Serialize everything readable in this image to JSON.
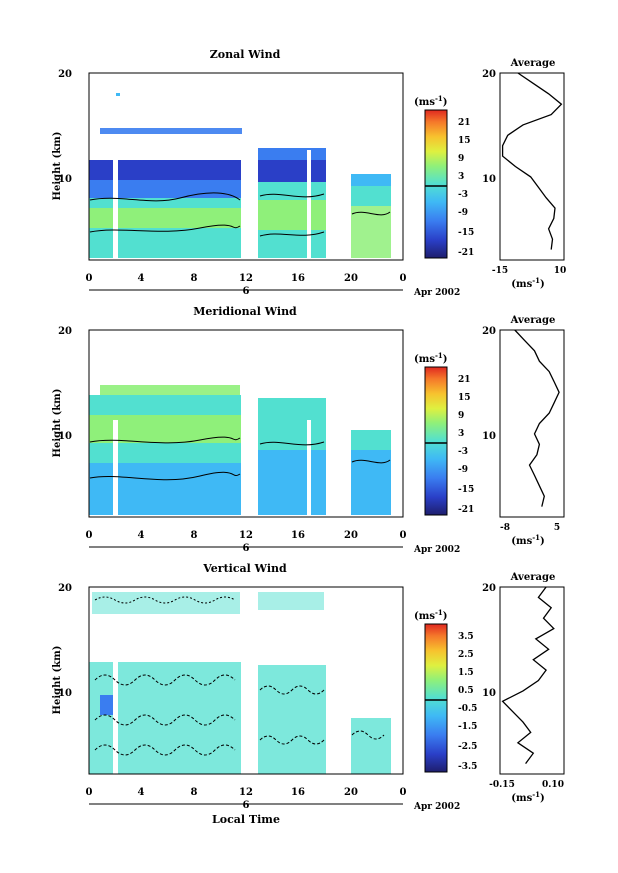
{
  "panels": [
    {
      "key": "zonal",
      "title": "Zonal Wind",
      "ylabel": "Height (km)",
      "unit_label": "(ms",
      "unit_sup": "-1",
      "date_label": "Apr 2002",
      "day_label": "6",
      "avg_title": "Average",
      "avg_xlabel": "(ms",
      "avg_xlabel_sup": "-1",
      "avg_xticks": [
        "-15",
        "10"
      ],
      "colorbar_ticks": [
        "21",
        "15",
        "9",
        "3",
        "-3",
        "-9",
        "-15",
        "-21"
      ],
      "colorbar_levels": [
        21,
        15,
        9,
        3,
        -3,
        -9,
        -15,
        -21
      ]
    },
    {
      "key": "meridional",
      "title": "Meridional Wind",
      "ylabel": "Height (km)",
      "unit_label": "(ms",
      "unit_sup": "-1",
      "date_label": "Apr 2002",
      "day_label": "6",
      "avg_title": "Average",
      "avg_xlabel": "(ms",
      "avg_xlabel_sup": "-1",
      "avg_xticks": [
        "-8",
        "5"
      ],
      "colorbar_ticks": [
        "21",
        "15",
        "9",
        "3",
        "-3",
        "-9",
        "-15",
        "-21"
      ],
      "colorbar_levels": [
        21,
        15,
        9,
        3,
        -3,
        -9,
        -15,
        -21
      ]
    },
    {
      "key": "vertical",
      "title": "Vertical Wind",
      "ylabel": "Height (km)",
      "unit_label": "(ms",
      "unit_sup": "-1",
      "date_label": "Apr 2002",
      "day_label": "6",
      "avg_title": "Average",
      "avg_xlabel": "(ms",
      "avg_xlabel_sup": "-1",
      "avg_xticks": [
        "-0.15",
        "0.10"
      ],
      "colorbar_ticks": [
        "3.5",
        "2.5",
        "1.5",
        "0.5",
        "-0.5",
        "-1.5",
        "-2.5",
        "-3.5"
      ],
      "colorbar_levels": [
        3.5,
        2.5,
        1.5,
        0.5,
        -0.5,
        -1.5,
        -2.5,
        -3.5
      ]
    }
  ],
  "xlabel_bottom": "Local Time",
  "chart_data": [
    {
      "type": "heatmap",
      "title": "Zonal Wind",
      "xlabel": "",
      "ylabel": "Height (km)",
      "x_ticks": [
        "0",
        "4",
        "8",
        "12",
        "16",
        "20",
        "0"
      ],
      "y_ticks": [
        "20",
        "10"
      ],
      "xlim": [
        0,
        24
      ],
      "ylim": [
        2,
        20
      ],
      "colorbar_unit": "ms-1",
      "colorbar_range": [
        -21,
        21
      ],
      "data_gaps_hours": [
        [
          2.0,
          2.3
        ],
        [
          12.0,
          12.8
        ],
        [
          17.0,
          17.3
        ],
        [
          18.0,
          20.0
        ],
        [
          23.0,
          24.0
        ]
      ],
      "profile": {
        "title": "Average",
        "xlim": [
          -15,
          10
        ],
        "heights": [
          3,
          4,
          5,
          6,
          7,
          8,
          9,
          10,
          11,
          12,
          13,
          14,
          15,
          16,
          17,
          18,
          19,
          20
        ],
        "values": [
          5,
          5.5,
          4,
          6,
          6.5,
          3,
          0,
          -3,
          -9,
          -14,
          -14,
          -12,
          -6,
          5,
          9,
          4,
          -2,
          -8
        ]
      }
    },
    {
      "type": "heatmap",
      "title": "Meridional Wind",
      "xlabel": "",
      "ylabel": "Height (km)",
      "x_ticks": [
        "0",
        "4",
        "8",
        "12",
        "16",
        "20",
        "0"
      ],
      "y_ticks": [
        "20",
        "10"
      ],
      "xlim": [
        0,
        24
      ],
      "ylim": [
        2,
        20
      ],
      "colorbar_unit": "ms-1",
      "colorbar_range": [
        -21,
        21
      ],
      "data_gaps_hours": [
        [
          2.0,
          2.3
        ],
        [
          12.0,
          12.8
        ],
        [
          17.0,
          17.3
        ],
        [
          18.0,
          20.0
        ],
        [
          23.0,
          24.0
        ]
      ],
      "profile": {
        "title": "Average",
        "xlim": [
          -8,
          5
        ],
        "heights": [
          3,
          4,
          5,
          6,
          7,
          8,
          9,
          10,
          11,
          12,
          13,
          14,
          15,
          16,
          17,
          18,
          19,
          20
        ],
        "values": [
          0.5,
          1,
          0,
          -1,
          -2,
          -0.5,
          0,
          -1,
          0,
          2,
          3,
          4,
          3,
          2,
          0,
          -1,
          -3,
          -5
        ]
      }
    },
    {
      "type": "heatmap",
      "title": "Vertical Wind",
      "xlabel": "Local Time",
      "ylabel": "Height (km)",
      "x_ticks": [
        "0",
        "4",
        "8",
        "12",
        "16",
        "20",
        "0"
      ],
      "y_ticks": [
        "20",
        "10"
      ],
      "xlim": [
        0,
        24
      ],
      "ylim": [
        2,
        20
      ],
      "colorbar_unit": "ms-1",
      "colorbar_range": [
        -3.5,
        3.5
      ],
      "data_gaps_hours": [
        [
          2.0,
          2.3
        ],
        [
          12.0,
          12.8
        ],
        [
          17.0,
          17.3
        ],
        [
          18.0,
          20.0
        ],
        [
          23.0,
          24.0
        ]
      ],
      "profile": {
        "title": "Average",
        "xlim": [
          -0.15,
          0.1
        ],
        "heights": [
          3,
          4,
          5,
          6,
          7,
          8,
          9,
          10,
          11,
          12,
          13,
          14,
          15,
          16,
          17,
          18,
          19,
          20
        ],
        "values": [
          -0.05,
          -0.02,
          -0.08,
          -0.03,
          -0.06,
          -0.1,
          -0.14,
          -0.06,
          0.0,
          0.03,
          -0.02,
          0.04,
          -0.01,
          0.06,
          0.02,
          0.05,
          0.0,
          0.03
        ]
      }
    }
  ],
  "colors": {
    "scale": [
      "#1e1e6e",
      "#2a3fc7",
      "#3a7df0",
      "#3fb9f5",
      "#52e0d0",
      "#8ff07a",
      "#dff040",
      "#f7c22e",
      "#f5782a",
      "#e02820"
    ]
  }
}
